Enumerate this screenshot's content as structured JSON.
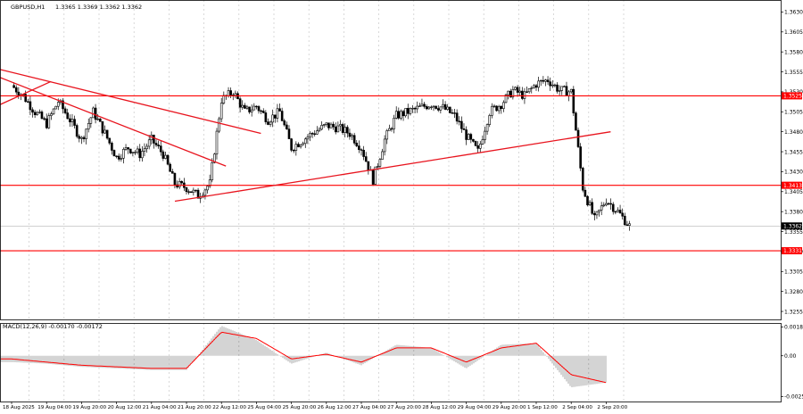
{
  "header": {
    "symbol_label": "GBPUSD,H1",
    "ohlc_label": "1.3365 1.3369 1.3362 1.3362"
  },
  "macd_panel": {
    "label": "MACD(12,26,9) -0.00170 -0.00172"
  },
  "colors": {
    "background": "#ffffff",
    "grid": "#c8c8c8",
    "candles": "#000000",
    "level_lines": "#ff0000",
    "trendlines": "#e8141e",
    "macd_histogram": "#a0a0a0",
    "signal_line": "#ff0000",
    "price_tag_bg": "#ff0000",
    "current_price_tag_bg": "#000000"
  },
  "chart_data": [
    {
      "type": "candlestick",
      "symbol": "GBPUSD",
      "timeframe": "H1",
      "ylim": [
        1.3245,
        1.3645
      ],
      "y_ticks": [
        1.3255,
        1.328,
        1.3305,
        1.333,
        1.3355,
        1.338,
        1.3405,
        1.343,
        1.3455,
        1.348,
        1.3505,
        1.353,
        1.3555,
        1.358,
        1.3605,
        1.363
      ],
      "x_tick_labels": [
        "18 Aug 2025",
        "19 Aug 04:00",
        "19 Aug 20:00",
        "20 Aug 12:00",
        "21 Aug 04:00",
        "21 Aug 20:00",
        "22 Aug 12:00",
        "25 Aug 04:00",
        "25 Aug 20:00",
        "26 Aug 12:00",
        "27 Aug 04:00",
        "27 Aug 20:00",
        "28 Aug 12:00",
        "29 Aug 04:00",
        "29 Aug 20:00",
        "1 Sep 12:00",
        "2 Sep 04:00",
        "2 Sep 20:00"
      ],
      "grid": true,
      "horizontal_levels": [
        {
          "price": 1.3525,
          "label": "1.3525"
        },
        {
          "price": 1.3413,
          "label": "1.3413"
        },
        {
          "price": 1.3331,
          "label": "1.3331"
        }
      ],
      "current_price": {
        "price": 1.3362,
        "label": "1.3362"
      },
      "trendlines": [
        {
          "from": [
            "18 Aug 2025",
            1.3558
          ],
          "to": [
            "25 Aug 04:00",
            1.3478
          ]
        },
        {
          "from": [
            "18 Aug 2025",
            1.3548
          ],
          "to": [
            "22 Aug 12:00",
            1.3437
          ]
        },
        {
          "from": [
            "18 Aug 2025",
            1.3514
          ],
          "to": [
            "19 Aug 04:00",
            1.3543
          ]
        },
        {
          "from": [
            "21 Aug 20:00",
            1.3393
          ],
          "to": [
            "2 Sep 20:00",
            1.348
          ]
        }
      ],
      "close_path": [
        [
          "18 Aug 2025",
          1.3538
        ],
        [
          "18 Aug 2025",
          1.3525
        ],
        [
          "18 Aug 2025",
          1.3505
        ],
        [
          "19 Aug 04:00",
          1.349
        ],
        [
          "19 Aug 04:00",
          1.3518
        ],
        [
          "19 Aug 04:00",
          1.3495
        ],
        [
          "19 Aug 20:00",
          1.347
        ],
        [
          "19 Aug 20:00",
          1.3505
        ],
        [
          "19 Aug 20:00",
          1.3478
        ],
        [
          "20 Aug 12:00",
          1.3448
        ],
        [
          "20 Aug 12:00",
          1.346
        ],
        [
          "20 Aug 12:00",
          1.3452
        ],
        [
          "21 Aug 04:00",
          1.347
        ],
        [
          "21 Aug 04:00",
          1.3452
        ],
        [
          "21 Aug 04:00",
          1.3415
        ],
        [
          "21 Aug 20:00",
          1.341
        ],
        [
          "21 Aug 20:00",
          1.34
        ],
        [
          "21 Aug 20:00",
          1.3415
        ],
        [
          "22 Aug 12:00",
          1.352
        ],
        [
          "22 Aug 12:00",
          1.353
        ],
        [
          "22 Aug 12:00",
          1.3505
        ],
        [
          "25 Aug 04:00",
          1.3512
        ],
        [
          "25 Aug 04:00",
          1.3495
        ],
        [
          "25 Aug 04:00",
          1.3505
        ],
        [
          "25 Aug 20:00",
          1.346
        ],
        [
          "25 Aug 20:00",
          1.347
        ],
        [
          "25 Aug 20:00",
          1.348
        ],
        [
          "26 Aug 12:00",
          1.3488
        ],
        [
          "26 Aug 12:00",
          1.3485
        ],
        [
          "26 Aug 12:00",
          1.3478
        ],
        [
          "27 Aug 04:00",
          1.346
        ],
        [
          "27 Aug 04:00",
          1.342
        ],
        [
          "27 Aug 04:00",
          1.347
        ],
        [
          "27 Aug 20:00",
          1.35
        ],
        [
          "27 Aug 20:00",
          1.3505
        ],
        [
          "27 Aug 20:00",
          1.351
        ],
        [
          "28 Aug 12:00",
          1.3515
        ],
        [
          "28 Aug 12:00",
          1.351
        ],
        [
          "28 Aug 12:00",
          1.35
        ],
        [
          "29 Aug 04:00",
          1.3475
        ],
        [
          "29 Aug 04:00",
          1.3455
        ],
        [
          "29 Aug 04:00",
          1.3505
        ],
        [
          "29 Aug 20:00",
          1.3515
        ],
        [
          "29 Aug 20:00",
          1.3532
        ],
        [
          "29 Aug 20:00",
          1.3525
        ],
        [
          "1 Sep 12:00",
          1.354
        ],
        [
          "1 Sep 12:00",
          1.3545
        ],
        [
          "1 Sep 12:00",
          1.3532
        ],
        [
          "2 Sep 04:00",
          1.353
        ],
        [
          "2 Sep 04:00",
          1.341
        ],
        [
          "2 Sep 04:00",
          1.337
        ],
        [
          "2 Sep 20:00",
          1.3395
        ],
        [
          "2 Sep 20:00",
          1.338
        ],
        [
          "2 Sep 20:00",
          1.3362
        ]
      ]
    },
    {
      "type": "macd",
      "name": "MACD(12,26,9)",
      "ylim": [
        -0.0029,
        0.00208
      ],
      "y_ticks": [
        0.00183,
        0.0,
        -0.00259
      ],
      "y_tick_labels": [
        "0.00183",
        "0.00",
        "-0.00259"
      ],
      "histogram_path": [
        [
          "18 Aug 2025",
          -0.0004
        ],
        [
          "19 Aug 04:00",
          -0.0005
        ],
        [
          "19 Aug 20:00",
          -0.0007
        ],
        [
          "20 Aug 12:00",
          -0.0008
        ],
        [
          "21 Aug 04:00",
          -0.0009
        ],
        [
          "21 Aug 20:00",
          -0.0009
        ],
        [
          "22 Aug 12:00",
          0.0019
        ],
        [
          "25 Aug 04:00",
          0.001
        ],
        [
          "25 Aug 20:00",
          -0.0005
        ],
        [
          "26 Aug 12:00",
          0.0002
        ],
        [
          "27 Aug 04:00",
          -0.0006
        ],
        [
          "27 Aug 20:00",
          0.0007
        ],
        [
          "28 Aug 12:00",
          0.0005
        ],
        [
          "29 Aug 04:00",
          -0.0008
        ],
        [
          "29 Aug 20:00",
          0.0007
        ],
        [
          "1 Sep 12:00",
          0.0008
        ],
        [
          "2 Sep 04:00",
          -0.002
        ],
        [
          "2 Sep 20:00",
          -0.0017
        ]
      ],
      "signal_path": [
        [
          "18 Aug 2025",
          -0.0002
        ],
        [
          "19 Aug 04:00",
          -0.0004
        ],
        [
          "19 Aug 20:00",
          -0.0006
        ],
        [
          "20 Aug 12:00",
          -0.0007
        ],
        [
          "21 Aug 04:00",
          -0.0008
        ],
        [
          "21 Aug 20:00",
          -0.0008
        ],
        [
          "22 Aug 12:00",
          0.0015
        ],
        [
          "25 Aug 04:00",
          0.0011
        ],
        [
          "25 Aug 20:00",
          -0.0002
        ],
        [
          "26 Aug 12:00",
          0.0001
        ],
        [
          "27 Aug 04:00",
          -0.0004
        ],
        [
          "27 Aug 20:00",
          0.0005
        ],
        [
          "28 Aug 12:00",
          0.0005
        ],
        [
          "29 Aug 04:00",
          -0.0004
        ],
        [
          "29 Aug 20:00",
          0.0005
        ],
        [
          "1 Sep 12:00",
          0.0008
        ],
        [
          "2 Sep 04:00",
          -0.0012
        ],
        [
          "2 Sep 20:00",
          -0.0017
        ]
      ]
    }
  ]
}
